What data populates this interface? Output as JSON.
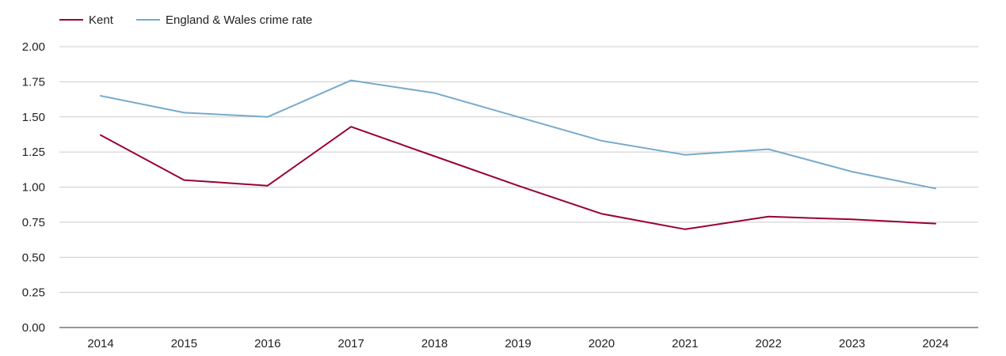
{
  "chart_data": {
    "type": "line",
    "title": "",
    "xlabel": "",
    "ylabel": "",
    "x": [
      "2014",
      "2015",
      "2016",
      "2017",
      "2018",
      "2019",
      "2020",
      "2021",
      "2022",
      "2023",
      "2024"
    ],
    "ylim": [
      0,
      2
    ],
    "yticks": [
      "0.00",
      "0.25",
      "0.50",
      "0.75",
      "1.00",
      "1.25",
      "1.50",
      "1.75",
      "2.00"
    ],
    "grid": true,
    "legend_position": "top-left",
    "series": [
      {
        "name": "Kent",
        "color": "#990033",
        "values": [
          1.37,
          1.05,
          1.01,
          1.43,
          1.22,
          1.01,
          0.81,
          0.7,
          0.79,
          0.77,
          0.74
        ]
      },
      {
        "name": "England & Wales crime rate",
        "color": "#77aacc",
        "values": [
          1.65,
          1.53,
          1.5,
          1.76,
          1.67,
          1.5,
          1.33,
          1.23,
          1.27,
          1.11,
          0.99
        ]
      }
    ]
  }
}
